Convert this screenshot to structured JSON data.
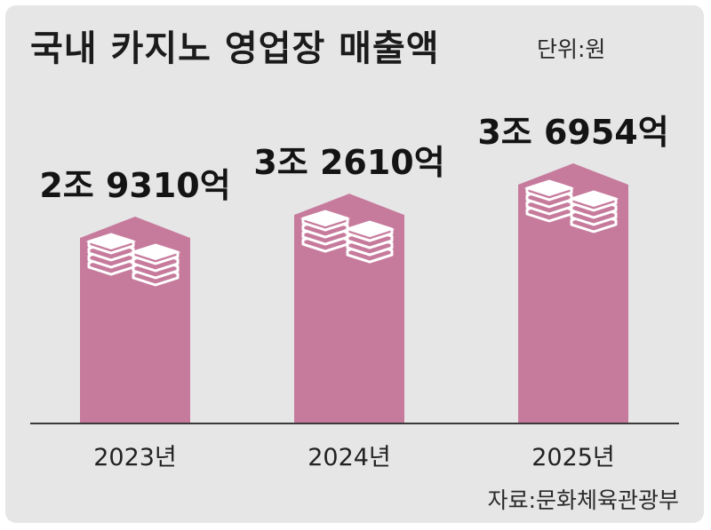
{
  "title": "국내 카지노 영업장 매출액",
  "unit": "단위:원",
  "source": "자료:문화체육관광부",
  "colors": {
    "background": "#e6e6e7",
    "bar": "#c77b9c",
    "bar_top": "#d99bb5",
    "money_stack": "#ffffff"
  },
  "icon": "money-stack-icon",
  "chart_data": {
    "type": "bar",
    "categories": [
      "2023년",
      "2024년",
      "2025년"
    ],
    "values": [
      29310,
      32610,
      36954
    ],
    "value_unit": "억원",
    "data_labels": [
      "2조 9310억",
      "3조 2610억",
      "3조 6954억"
    ],
    "title": "국내 카지노 영업장 매출액",
    "xlabel": "",
    "ylabel": "",
    "ylim": [
      0,
      40000
    ],
    "grid": false,
    "legend": "none"
  }
}
